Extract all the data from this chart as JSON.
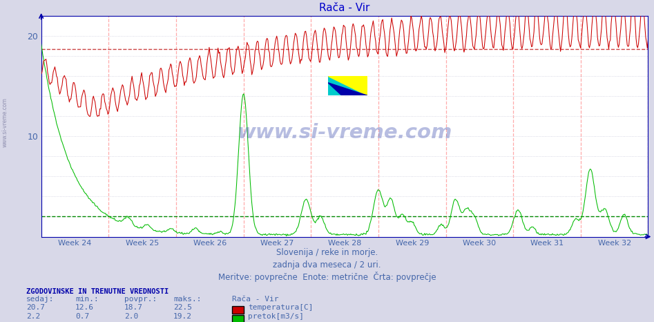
{
  "title": "Rača - Vir",
  "subtitle1": "Slovenija / reke in morje.",
  "subtitle2": "zadnja dva meseca / 2 uri.",
  "subtitle3": "Meritve: povprečne  Enote: metrične  Črta: povprečje",
  "week_labels": [
    "Week 24",
    "Week 25",
    "Week 26",
    "Week 27",
    "Week 28",
    "Week 29",
    "Week 30",
    "Week 31",
    "Week 32"
  ],
  "temp_avg": 18.7,
  "flow_avg": 2.0,
  "temp_min": 12.6,
  "temp_max": 22.5,
  "temp_current": 20.7,
  "temp_povpr": 18.7,
  "flow_min": 0.7,
  "flow_max": 19.2,
  "flow_current": 2.2,
  "flow_povpr": 2.0,
  "ymax": 22.0,
  "ymin": 0.0,
  "bg_color": "#d8d8e8",
  "plot_bg": "#ffffff",
  "red_line_color": "#cc0000",
  "green_line_color": "#00bb00",
  "dashed_red_color": "#cc4444",
  "dashed_green_color": "#008800",
  "title_color": "#0000cc",
  "axis_color": "#0000aa",
  "text_color": "#4466aa",
  "week_line_color": "#ffaaaa",
  "grid_color": "#ccccdd",
  "watermark_color": "#8888aa",
  "label_color": "#4466aa",
  "table_header_color": "#3355bb",
  "left_bar_color": "#3333aa"
}
